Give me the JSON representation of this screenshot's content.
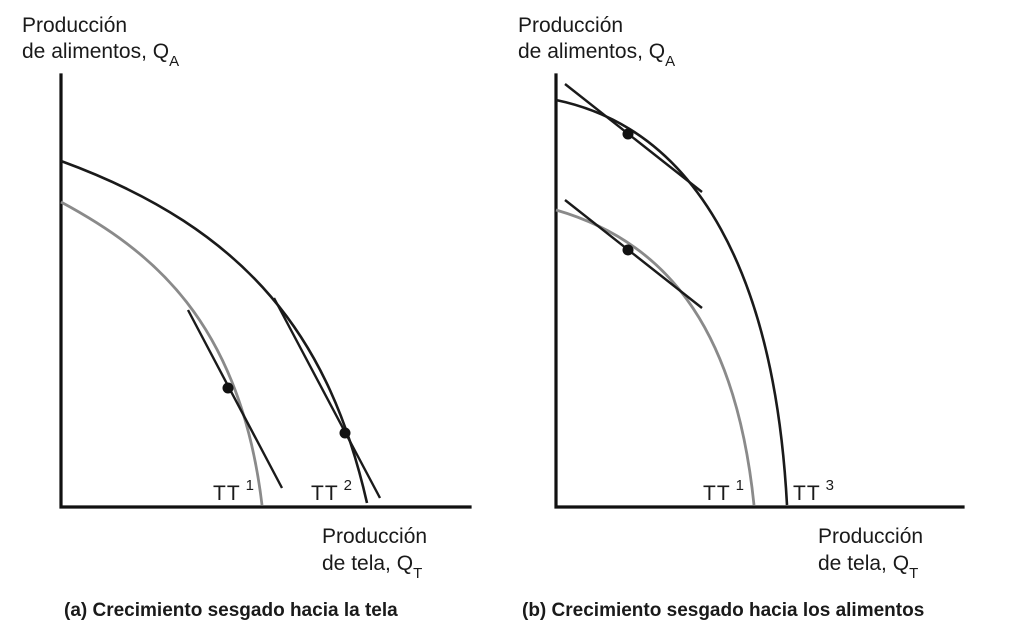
{
  "panel_a": {
    "y_label_line1": "Producción",
    "y_label_line2": "de alimentos, Q",
    "y_label_sub": "A",
    "x_label_line1": "Producción",
    "x_label_line2": "de tela, Q",
    "x_label_sub": "T",
    "curve1_label": "TT",
    "curve1_sup": "1",
    "curve2_label": "TT",
    "curve2_sup": "2",
    "caption": "(a) Crecimiento sesgado hacia la tela"
  },
  "panel_b": {
    "y_label_line1": "Producción",
    "y_label_line2": "de alimentos, Q",
    "y_label_sub": "A",
    "x_label_line1": "Producción",
    "x_label_line2": "de tela, Q",
    "x_label_sub": "T",
    "curve1_label": "TT",
    "curve1_sup": "1",
    "curve2_label": "TT",
    "curve2_sup": "3",
    "caption": "(b) Crecimiento sesgado hacia los alimentos"
  },
  "colors": {
    "original_frontier": "#8a8a8a",
    "new_frontier": "#1a1a1a"
  }
}
